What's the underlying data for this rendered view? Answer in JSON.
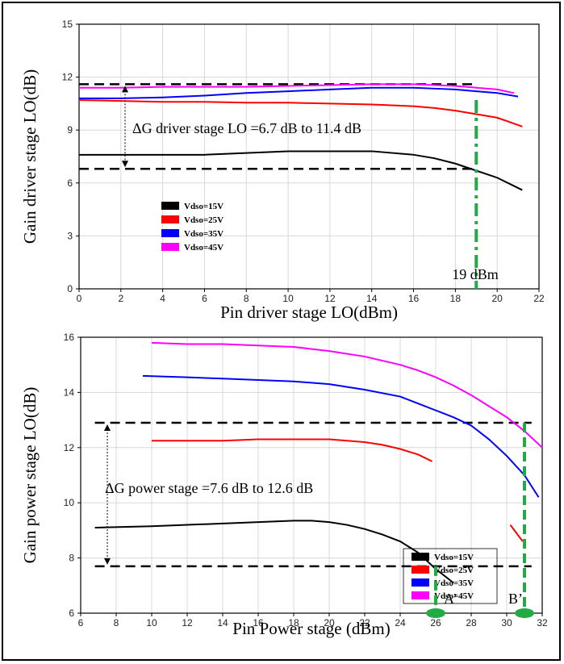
{
  "chart_data": [
    {
      "type": "line",
      "xlabel": "Pin driver stage LO(dBm)",
      "ylabel": "Gain driver stage LO(dB)",
      "xlim": [
        0,
        22
      ],
      "ylim": [
        0,
        15
      ],
      "xticks": [
        "0",
        "2",
        "4",
        "6",
        "8",
        "10",
        "12",
        "14",
        "16",
        "18",
        "20",
        "22"
      ],
      "yticks": [
        "0",
        "3",
        "6",
        "9",
        "12",
        "15"
      ],
      "grid": true,
      "legend_position": "bottom-left",
      "series": [
        {
          "name": "Vdso=15V",
          "color": "#000000",
          "x": [
            0,
            2,
            4,
            6,
            8,
            10,
            12,
            14,
            16,
            17,
            18,
            19,
            20,
            21.2
          ],
          "y": [
            7.6,
            7.6,
            7.6,
            7.6,
            7.7,
            7.8,
            7.8,
            7.8,
            7.6,
            7.4,
            7.1,
            6.7,
            6.3,
            5.6
          ]
        },
        {
          "name": "Vdso=25V",
          "color": "#ff0000",
          "x": [
            0,
            2,
            4,
            6,
            8,
            10,
            12,
            14,
            16,
            17,
            18,
            19,
            20,
            21.2
          ],
          "y": [
            10.7,
            10.65,
            10.6,
            10.6,
            10.55,
            10.55,
            10.5,
            10.45,
            10.35,
            10.25,
            10.1,
            9.9,
            9.7,
            9.2
          ]
        },
        {
          "name": "Vdso=35V",
          "color": "#0000ff",
          "x": [
            0,
            2,
            4,
            6,
            8,
            10,
            12,
            14,
            16,
            17,
            18,
            19,
            20,
            21
          ],
          "y": [
            10.8,
            10.8,
            10.85,
            10.95,
            11.1,
            11.2,
            11.3,
            11.4,
            11.4,
            11.35,
            11.3,
            11.2,
            11.1,
            10.9
          ]
        },
        {
          "name": "Vdso=45V",
          "color": "#ff00ff",
          "x": [
            0,
            2,
            4,
            6,
            8,
            10,
            12,
            14,
            16,
            17,
            18,
            19,
            20,
            20.8
          ],
          "y": [
            11.4,
            11.4,
            11.45,
            11.45,
            11.45,
            11.5,
            11.55,
            11.6,
            11.6,
            11.55,
            11.5,
            11.4,
            11.3,
            11.1
          ]
        }
      ],
      "reference_lines": {
        "hlines": [
          11.6,
          6.8
        ],
        "vline": 19
      },
      "annotations": {
        "delta_label": "ΔG driver stage LO =6.7 dB to 11.4 dB",
        "vline_label": "19 dBm"
      }
    },
    {
      "type": "line",
      "xlabel": "Pin Power stage (dBm)",
      "ylabel": "Gain power stage LO(dB)",
      "xlim": [
        6,
        32
      ],
      "ylim": [
        6,
        16
      ],
      "xticks": [
        "6",
        "8",
        "10",
        "12",
        "14",
        "16",
        "18",
        "20",
        "22",
        "24",
        "26",
        "28",
        "30",
        "32"
      ],
      "yticks": [
        "6",
        "8",
        "10",
        "12",
        "14",
        "16"
      ],
      "grid": true,
      "legend_position": "right",
      "series": [
        {
          "name": "Vdso=15V",
          "color": "#000000",
          "x": [
            6.8,
            10,
            12,
            14,
            16,
            18,
            19,
            20,
            21,
            22,
            23,
            24,
            25,
            26,
            27
          ],
          "y": [
            9.1,
            9.15,
            9.2,
            9.25,
            9.3,
            9.35,
            9.35,
            9.3,
            9.2,
            9.05,
            8.85,
            8.6,
            8.2,
            7.6,
            7.1
          ]
        },
        {
          "name": "Vdso=25V",
          "color": "#ff0000",
          "x": [
            10,
            12,
            14,
            16,
            18,
            20,
            21,
            22,
            23,
            24,
            25,
            25.8,
            30.2,
            30.9
          ],
          "y": [
            12.25,
            12.25,
            12.25,
            12.3,
            12.3,
            12.3,
            12.25,
            12.2,
            12.1,
            11.95,
            11.75,
            11.5,
            9.2,
            8.6
          ]
        },
        {
          "name": "Vdso=35V",
          "color": "#0000ff",
          "x": [
            9.5,
            12,
            14,
            16,
            18,
            20,
            22,
            24,
            25,
            26,
            27,
            28,
            29,
            30,
            31,
            31.8
          ],
          "y": [
            14.6,
            14.55,
            14.5,
            14.45,
            14.4,
            14.3,
            14.1,
            13.85,
            13.6,
            13.35,
            13.1,
            12.8,
            12.3,
            11.7,
            11,
            10.2
          ]
        },
        {
          "name": "Vdso=45V",
          "color": "#ff00ff",
          "x": [
            10,
            12,
            14,
            16,
            18,
            20,
            22,
            24,
            25,
            26,
            27,
            28,
            29,
            30,
            31,
            32
          ],
          "y": [
            15.8,
            15.75,
            15.75,
            15.7,
            15.65,
            15.5,
            15.3,
            15,
            14.8,
            14.55,
            14.25,
            13.9,
            13.5,
            13.1,
            12.6,
            12
          ]
        }
      ],
      "reference_lines": {
        "hlines": [
          12.9,
          7.7
        ],
        "vlines": [
          26,
          31
        ]
      },
      "annotations": {
        "delta_label": "ΔG power stage =7.6 dB to 12.6 dB",
        "point_a": "A’",
        "point_b": "B’"
      }
    }
  ]
}
